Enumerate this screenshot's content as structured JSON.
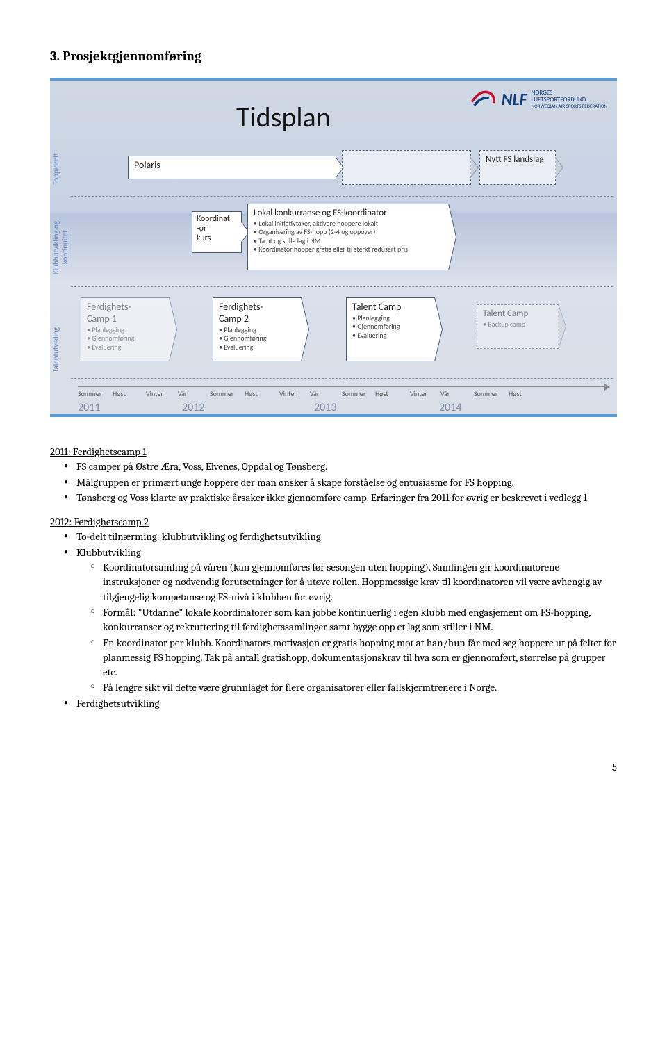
{
  "heading": "3. Prosjektgjennomføring",
  "pageNumber": "5",
  "tidsplan": {
    "title": "Tidsplan",
    "logo": {
      "abbr": "NLF",
      "line1": "NORGES",
      "line2": "LUFTSPORTFORBUND",
      "line3": "NORWEGIAN AIR SPORTS FEDERATION"
    },
    "ylabels": [
      "Toppidrett",
      "Klubbutvikling og kontinuitet",
      "Talentutvikling"
    ],
    "row1": {
      "boxA": {
        "title": "Polaris"
      },
      "boxB": {
        "title": "Nytt FS landslag"
      }
    },
    "row2": {
      "boxA": {
        "line1": "Koordinat",
        "line2": "-or",
        "line3": "kurs"
      },
      "boxB": {
        "title": "Lokal konkurranse og FS-koordinator",
        "items": [
          "Lokal initiativtaker, aktivere hoppere lokalt",
          "Organisering av FS-hopp (2-4 og oppover)",
          "Ta ut og stille lag i NM",
          "Koordinator hopper gratis eller til sterkt redusert pris"
        ]
      }
    },
    "row3": {
      "boxA": {
        "title": "Ferdighets-\nCamp 1",
        "items": [
          "Planlegging",
          "Gjennomføring",
          "Evaluering"
        ]
      },
      "boxB": {
        "title": "Ferdighets-\nCamp 2",
        "items": [
          "Planlegging",
          "Gjennomføring",
          "Evaluering"
        ]
      },
      "boxC": {
        "title": "Talent Camp",
        "items": [
          "Planlegging",
          "Gjennomføring",
          "Evaluering"
        ]
      },
      "boxD": {
        "title": "Talent Camp",
        "items": [
          "Backup camp"
        ]
      }
    },
    "timeline": {
      "seasons": [
        "Sommer",
        "Høst",
        "Vinter",
        "Vår",
        "Sommer",
        "Høst",
        "Vinter",
        "Vår",
        "Sommer",
        "Høst",
        "Vinter",
        "Vår",
        "Sommer",
        "Høst"
      ],
      "seasonLeft": [
        0,
        50,
        98,
        144,
        190,
        240,
        290,
        334,
        380,
        428,
        478,
        522,
        570,
        620
      ],
      "years": [
        "2011",
        "2012",
        "2013",
        "2014"
      ],
      "yearLeft": [
        0,
        150,
        340,
        520
      ]
    }
  },
  "body": {
    "sec1": {
      "head": "2011: Ferdighetscamp 1",
      "items": [
        "FS camper på Østre Æra, Voss, Elvenes, Oppdal og Tønsberg.",
        "Målgruppen er primært unge hoppere der man ønsker å skape forståelse og entusiasme for FS hopping.",
        "Tønsberg og Voss klarte av praktiske årsaker ikke gjennomføre camp. Erfaringer fra 2011 for øvrig er beskrevet i vedlegg 1."
      ]
    },
    "sec2": {
      "head": "2012: Ferdighetscamp 2",
      "itemA": "To-delt tilnærming: klubbutvikling og ferdighetsutvikling",
      "itemB": "Klubbutvikling",
      "subs": [
        "Koordinatorsamling på våren (kan gjennomføres før sesongen uten hopping). Samlingen gir koordinatorene instruksjoner og nødvendig forutsetninger for å utøve rollen. Hoppmessige krav til koordinatoren vil være avhengig av tilgjengelig kompetanse og FS-nivå i klubben for øvrig.",
        "Formål: \"Utdanne\" lokale koordinatorer som kan jobbe kontinuerlig i egen klubb med engasjement om FS-hopping, konkurranser og rekruttering til ferdighetssamlinger samt bygge opp et lag som stiller i NM.",
        "En koordinator per klubb. Koordinators motivasjon er gratis hopping mot at han/hun får med seg hoppere ut på feltet for planmessig FS hopping. Tak på antall gratishopp, dokumentasjonskrav til hva som er gjennomført, størrelse på grupper etc.",
        "På lengre sikt vil dette være grunnlaget for flere organisatorer eller fallskjermtrenere i Norge."
      ],
      "itemC": "Ferdighetsutvikling"
    }
  }
}
